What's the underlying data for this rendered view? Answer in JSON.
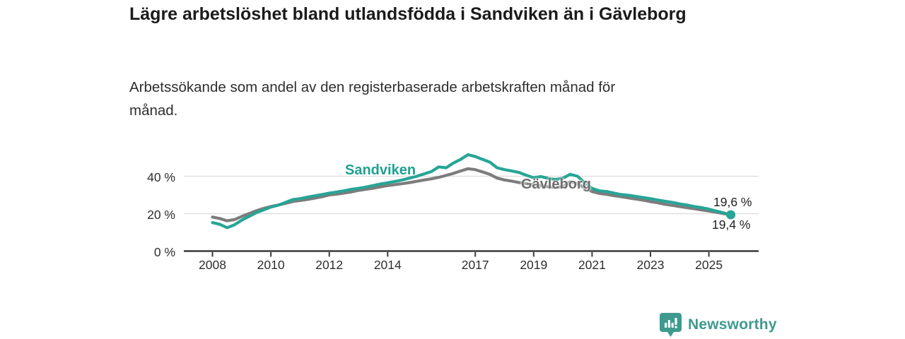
{
  "header": {
    "title": "Lägre arbetslöshet bland utlandsfödda i Sandviken än i Gävleborg",
    "subtitle": "Arbetssökande som andel av den registerbaserade arbetskraften månad för månad."
  },
  "footer": {
    "brand": "Newsworthy",
    "brand_color": "#3e9a8f",
    "logo_icon": "bar-chart-speech-bubble-icon"
  },
  "chart_data": {
    "type": "line",
    "title": "Lägre arbetslöshet bland utlandsfödda i Sandviken än i Gävleborg",
    "subtitle": "Arbetssökande som andel av den registerbaserade arbetskraften månad för månad.",
    "xlabel": "",
    "ylabel": "",
    "unit": "%",
    "grid": "horizontal",
    "legend": "inline-labels",
    "x_axis": {
      "range": [
        2007.0,
        2026.7
      ],
      "ticks": [
        {
          "value": 2008,
          "label": "2008"
        },
        {
          "value": 2010,
          "label": "2010"
        },
        {
          "value": 2012,
          "label": "2012"
        },
        {
          "value": 2014,
          "label": "2014"
        },
        {
          "value": 2017,
          "label": "2017"
        },
        {
          "value": 2019,
          "label": "2019"
        },
        {
          "value": 2021,
          "label": "2021"
        },
        {
          "value": 2023,
          "label": "2023"
        },
        {
          "value": 2025,
          "label": "2025"
        }
      ]
    },
    "y_axis": {
      "range": [
        0,
        55
      ],
      "ticks": [
        {
          "value": 0,
          "label": "0 %"
        },
        {
          "value": 20,
          "label": "20 %"
        },
        {
          "value": 40,
          "label": "40 %"
        }
      ]
    },
    "x": [
      2008.0,
      2008.25,
      2008.5,
      2008.75,
      2009.0,
      2009.25,
      2009.5,
      2009.75,
      2010.0,
      2010.25,
      2010.5,
      2010.75,
      2011.0,
      2011.25,
      2011.5,
      2011.75,
      2012.0,
      2012.25,
      2012.5,
      2012.75,
      2013.0,
      2013.25,
      2013.5,
      2013.75,
      2014.0,
      2014.25,
      2014.5,
      2014.75,
      2015.0,
      2015.25,
      2015.5,
      2015.75,
      2016.0,
      2016.25,
      2016.5,
      2016.75,
      2017.0,
      2017.25,
      2017.5,
      2017.75,
      2018.0,
      2018.25,
      2018.5,
      2018.75,
      2019.0,
      2019.25,
      2019.5,
      2019.75,
      2020.0,
      2020.25,
      2020.5,
      2020.75,
      2021.0,
      2021.25,
      2021.5,
      2021.75,
      2022.0,
      2022.25,
      2022.5,
      2022.75,
      2023.0,
      2023.25,
      2023.5,
      2023.75,
      2024.0,
      2024.25,
      2024.5,
      2024.75,
      2025.0,
      2025.25,
      2025.5,
      2025.75
    ],
    "series": [
      {
        "name": "Sandviken",
        "color": "#27a596",
        "label_color": "#1fa091",
        "end_label": "19,4 %",
        "end_value": 19.4,
        "end_dot": true,
        "values": [
          15.2,
          14.3,
          12.5,
          14.0,
          16.5,
          18.5,
          20.5,
          22.0,
          23.5,
          24.5,
          26.0,
          27.5,
          28.0,
          28.8,
          29.5,
          30.2,
          31.0,
          31.5,
          32.2,
          33.0,
          33.5,
          34.2,
          35.0,
          35.8,
          36.5,
          37.2,
          38.0,
          39.0,
          40.0,
          41.2,
          42.5,
          45.0,
          44.5,
          47.0,
          49.0,
          51.5,
          50.5,
          49.0,
          47.5,
          44.5,
          43.5,
          42.8,
          42.0,
          40.5,
          39.2,
          39.8,
          38.8,
          38.2,
          39.0,
          41.0,
          40.0,
          36.5,
          33.5,
          32.2,
          31.8,
          31.0,
          30.2,
          29.8,
          29.2,
          28.6,
          28.0,
          27.3,
          26.6,
          26.0,
          25.2,
          24.6,
          23.8,
          23.2,
          22.4,
          21.4,
          20.4,
          19.4
        ]
      },
      {
        "name": "Gävleborg",
        "color": "#7c7c7c",
        "label_color": "#6e6e6e",
        "end_label": "19,6 %",
        "end_value": 19.6,
        "end_dot": true,
        "values": [
          18.2,
          17.4,
          16.2,
          16.8,
          18.5,
          20.0,
          21.5,
          22.8,
          23.8,
          24.6,
          25.5,
          26.5,
          27.0,
          27.6,
          28.3,
          29.0,
          30.0,
          30.4,
          31.0,
          31.6,
          32.4,
          33.0,
          33.6,
          34.3,
          35.0,
          35.5,
          36.0,
          36.6,
          37.3,
          38.0,
          38.6,
          39.4,
          40.4,
          41.5,
          42.8,
          44.0,
          43.5,
          42.3,
          41.0,
          39.0,
          38.0,
          37.4,
          36.6,
          36.0,
          35.4,
          35.0,
          34.4,
          34.0,
          34.6,
          37.0,
          36.0,
          33.8,
          31.8,
          30.8,
          30.3,
          29.6,
          29.0,
          28.4,
          27.8,
          27.2,
          26.4,
          25.8,
          25.0,
          24.4,
          23.8,
          23.2,
          22.6,
          22.0,
          21.4,
          20.8,
          20.0,
          19.6
        ]
      }
    ]
  }
}
